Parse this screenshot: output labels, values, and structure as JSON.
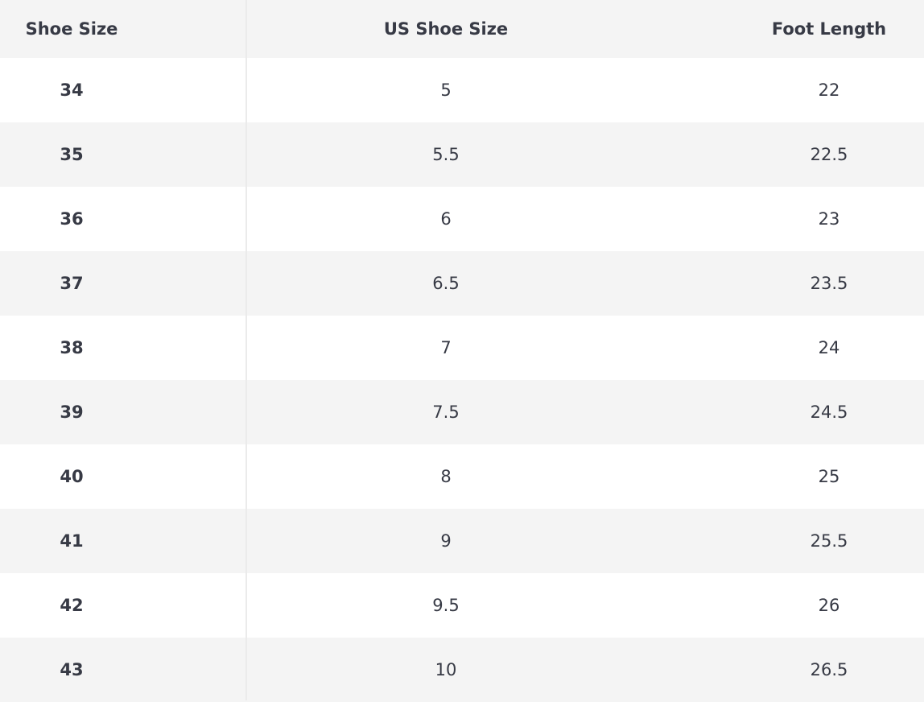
{
  "table": {
    "headers": [
      "Shoe Size",
      "US Shoe Size",
      "Foot Length"
    ],
    "rows": [
      [
        "34",
        "5",
        "22"
      ],
      [
        "35",
        "5.5",
        "22.5"
      ],
      [
        "36",
        "6",
        "23"
      ],
      [
        "37",
        "6.5",
        "23.5"
      ],
      [
        "38",
        "7",
        "24"
      ],
      [
        "39",
        "7.5",
        "24.5"
      ],
      [
        "40",
        "8",
        "25"
      ],
      [
        "41",
        "9",
        "25.5"
      ],
      [
        "42",
        "9.5",
        "26"
      ],
      [
        "43",
        "10",
        "26.5"
      ]
    ]
  },
  "colors": {
    "text": "#373a45",
    "stripe": "#f4f4f4",
    "divider": "#ebebeb"
  }
}
